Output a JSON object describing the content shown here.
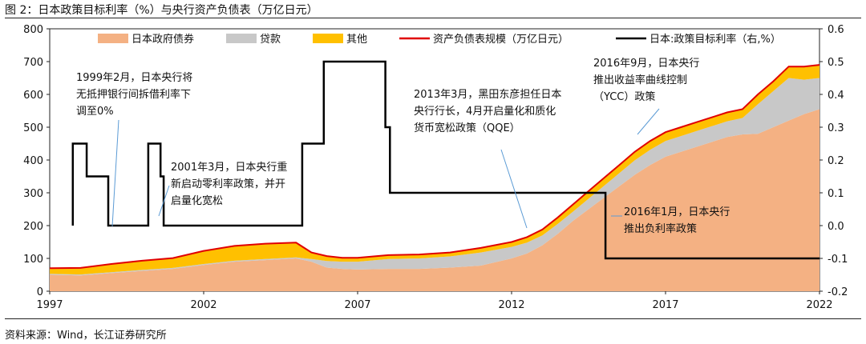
{
  "header": {
    "title": "图 2：日本政策目标利率（%）与央行资产负债表（万亿日元）"
  },
  "footer": {
    "source": "资料来源：Wind，长江证券研究所"
  },
  "colors": {
    "gov_bonds": "#f4b183",
    "loans": "#c8c8c8",
    "others": "#ffc000",
    "total": "#e00000",
    "policy_rate": "#000000"
  },
  "chart_data": {
    "type": "area",
    "title": "",
    "xlim": [
      1997,
      2022
    ],
    "ylim_left": [
      0,
      800
    ],
    "ylim_right": [
      -0.2,
      0.6
    ],
    "x_ticks": [
      "1997",
      "2002",
      "2007",
      "2012",
      "2017",
      "2022"
    ],
    "y_ticks_left": [
      "0",
      "100",
      "200",
      "300",
      "400",
      "500",
      "600",
      "700",
      "800"
    ],
    "y_ticks_right": [
      "-0.2",
      "-0.1",
      "0.0",
      "0.1",
      "0.2",
      "0.3",
      "0.4",
      "0.5",
      "0.6"
    ],
    "legend": [
      "日本政府债券",
      "贷款",
      "其他",
      "资产负债表规模（万亿日元）",
      "日本:政策目标利率（右,%）"
    ],
    "x": [
      1997.0,
      1998.0,
      1999.0,
      2000.0,
      2001.0,
      2002.0,
      2003.0,
      2004.0,
      2005.0,
      2005.5,
      2006.0,
      2006.5,
      2007.0,
      2008.0,
      2009.0,
      2010.0,
      2011.0,
      2012.0,
      2012.5,
      2013.0,
      2013.5,
      2014.0,
      2014.5,
      2015.0,
      2015.5,
      2016.0,
      2016.5,
      2017.0,
      2017.5,
      2018.0,
      2018.5,
      2019.0,
      2019.5,
      2020.0,
      2020.5,
      2021.0,
      2021.5,
      2022.0
    ],
    "series": [
      {
        "name": "日本政府债券",
        "values": [
          50,
          48,
          55,
          62,
          68,
          80,
          90,
          95,
          100,
          90,
          72,
          68,
          66,
          68,
          68,
          72,
          78,
          100,
          115,
          140,
          175,
          215,
          250,
          285,
          320,
          355,
          385,
          410,
          425,
          440,
          455,
          470,
          478,
          480,
          500,
          520,
          540,
          555
        ]
      },
      {
        "name": "贷款",
        "values": [
          3,
          3,
          3,
          3,
          3,
          3,
          3,
          3,
          3,
          8,
          20,
          22,
          24,
          30,
          32,
          34,
          40,
          35,
          33,
          30,
          30,
          28,
          32,
          36,
          40,
          44,
          46,
          48,
          48,
          48,
          48,
          48,
          50,
          90,
          110,
          130,
          105,
          95
        ]
      },
      {
        "name": "其他",
        "values": [
          17,
          20,
          25,
          28,
          30,
          40,
          45,
          47,
          45,
          20,
          15,
          12,
          12,
          12,
          12,
          12,
          14,
          15,
          17,
          18,
          20,
          22,
          23,
          24,
          25,
          26,
          27,
          27,
          27,
          27,
          27,
          27,
          27,
          30,
          30,
          35,
          40,
          40
        ]
      },
      {
        "name": "资产负债表规模（万亿日元）",
        "values": [
          70,
          71,
          83,
          93,
          101,
          123,
          138,
          145,
          148,
          118,
          107,
          102,
          102,
          110,
          112,
          118,
          132,
          150,
          165,
          188,
          225,
          265,
          305,
          345,
          385,
          425,
          458,
          485,
          500,
          515,
          530,
          545,
          555,
          600,
          640,
          685,
          685,
          690
        ]
      }
    ],
    "policy_rate": {
      "name": "日本:政策目标利率（右,%）",
      "x": [
        1997.75,
        1997.75,
        1998.2,
        1998.2,
        1998.9,
        1998.9,
        1999.6,
        1999.6,
        2000.2,
        2000.2,
        2000.6,
        2000.6,
        2000.7,
        2000.7,
        2005.2,
        2005.2,
        2005.9,
        2005.9,
        2007.9,
        2007.9,
        2008.05,
        2008.05,
        2015.05,
        2015.05,
        2022.0
      ],
      "values": [
        0.0,
        0.25,
        0.25,
        0.15,
        0.15,
        0.0,
        0.0,
        0.0,
        0.0,
        0.25,
        0.25,
        0.15,
        0.15,
        0.0,
        0.0,
        0.25,
        0.25,
        0.5,
        0.5,
        0.3,
        0.3,
        0.1,
        0.1,
        -0.1,
        -0.1
      ]
    },
    "annotations": [
      {
        "lines": [
          "1999年2月，日本央行将",
          "无抵押银行间拆借利率下",
          "调至0%"
        ]
      },
      {
        "lines": [
          "2001年3月，日本央行重",
          "新启动零利率政策，并开",
          "启量化宽松"
        ]
      },
      {
        "lines": [
          "2013年3月，黑田东彦担任日本",
          "央行行长，4月开启量化和质化",
          "货币宽松政策（QQE）"
        ]
      },
      {
        "lines": [
          "2016年9月，日本央行",
          "推出收益率曲线控制",
          "（YCC）政策"
        ]
      },
      {
        "lines": [
          "2016年1月，日本央行",
          "推出负利率政策"
        ]
      }
    ]
  }
}
